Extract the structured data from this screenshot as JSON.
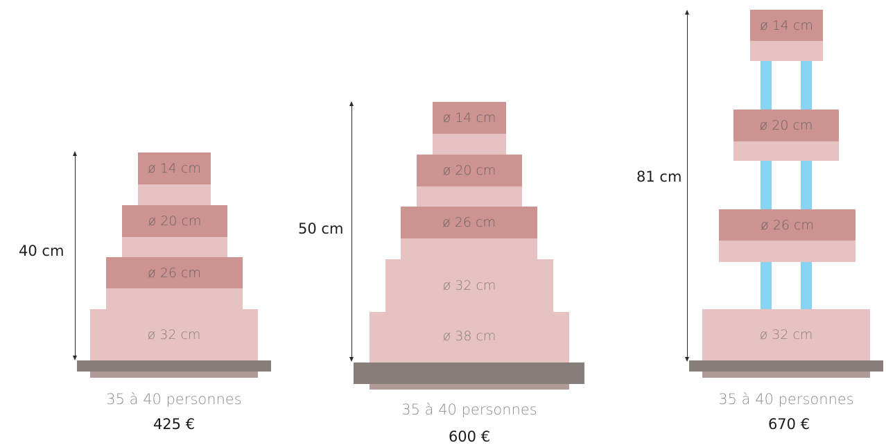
{
  "cakes": [
    {
      "height": "40 cm",
      "tiers": [
        "ø 14 cm",
        "ø 20 cm",
        "ø 26 cm",
        "ø 32 cm"
      ],
      "servings": "35 à 40 personnes",
      "price": "425 €"
    },
    {
      "height": "50 cm",
      "tiers": [
        "ø 14 cm",
        "ø 20 cm",
        "ø 26 cm",
        "ø 32 cm",
        "ø 38 cm"
      ],
      "servings": "35 à 40 personnes",
      "price": "600 €"
    },
    {
      "height": "81 cm",
      "tiers": [
        "ø 14 cm",
        "ø 20 cm",
        "ø 26 cm",
        "ø 32 cm"
      ],
      "servings": "35 à 40 personnes",
      "price": "670 €"
    }
  ],
  "colors": {
    "tier_top": "#cd9391",
    "tier_side": "#e6c3c2",
    "board": "#877d79",
    "pillar": "#86d4f0"
  }
}
